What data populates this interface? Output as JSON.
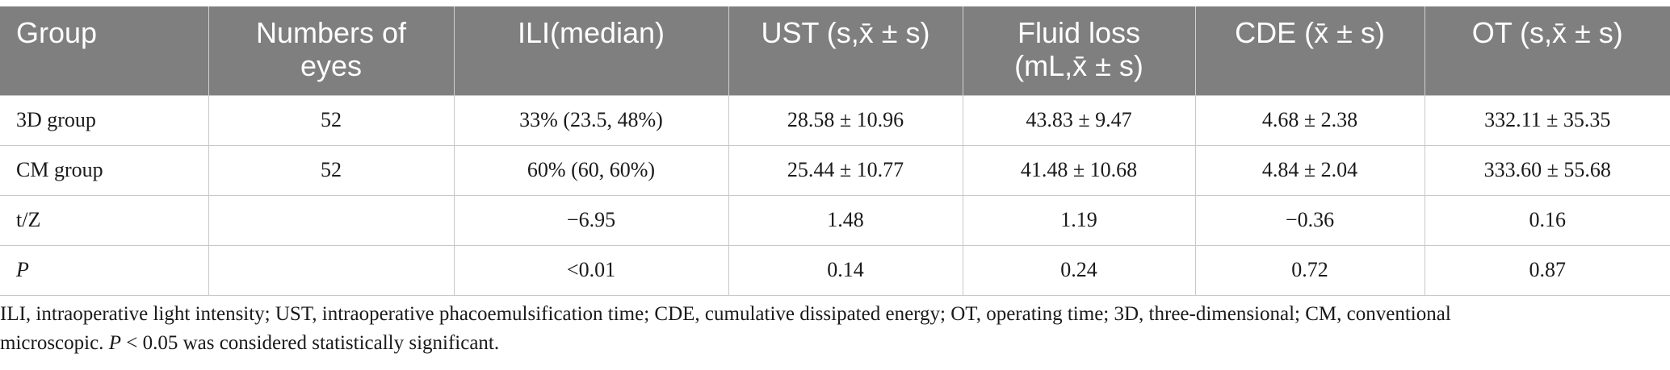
{
  "table": {
    "headers": [
      "Group",
      "Numbers of eyes",
      "ILI(median)",
      "UST (s,x̄ ± s)",
      "Fluid loss (mL,x̄ ± s)",
      "CDE (x̄ ± s)",
      "OT (s,x̄ ± s)"
    ],
    "rows": [
      [
        "3D group",
        "52",
        "33% (23.5, 48%)",
        "28.58 ± 10.96",
        "43.83 ± 9.47",
        "4.68 ± 2.38",
        "332.11 ± 35.35"
      ],
      [
        "CM group",
        "52",
        "60% (60, 60%)",
        "25.44 ± 10.77",
        "41.48 ± 10.68",
        "4.84 ± 2.04",
        "333.60 ± 55.68"
      ],
      [
        "t/Z",
        "",
        "−6.95",
        "1.48",
        "1.19",
        "−0.36",
        "0.16"
      ],
      [
        "P",
        "",
        "<0.01",
        "0.14",
        "0.24",
        "0.72",
        "0.87"
      ]
    ]
  },
  "footnote": {
    "line1": "ILI, intraoperative light intensity; UST, intraoperative phacoemulsification time; CDE, cumulative dissipated energy; OT, operating time; 3D, three-dimensional; CM, conventional",
    "line2_pre": "microscopic.",
    "line2_p": "P",
    "line2_post": " < 0.05 was considered statistically significant."
  }
}
